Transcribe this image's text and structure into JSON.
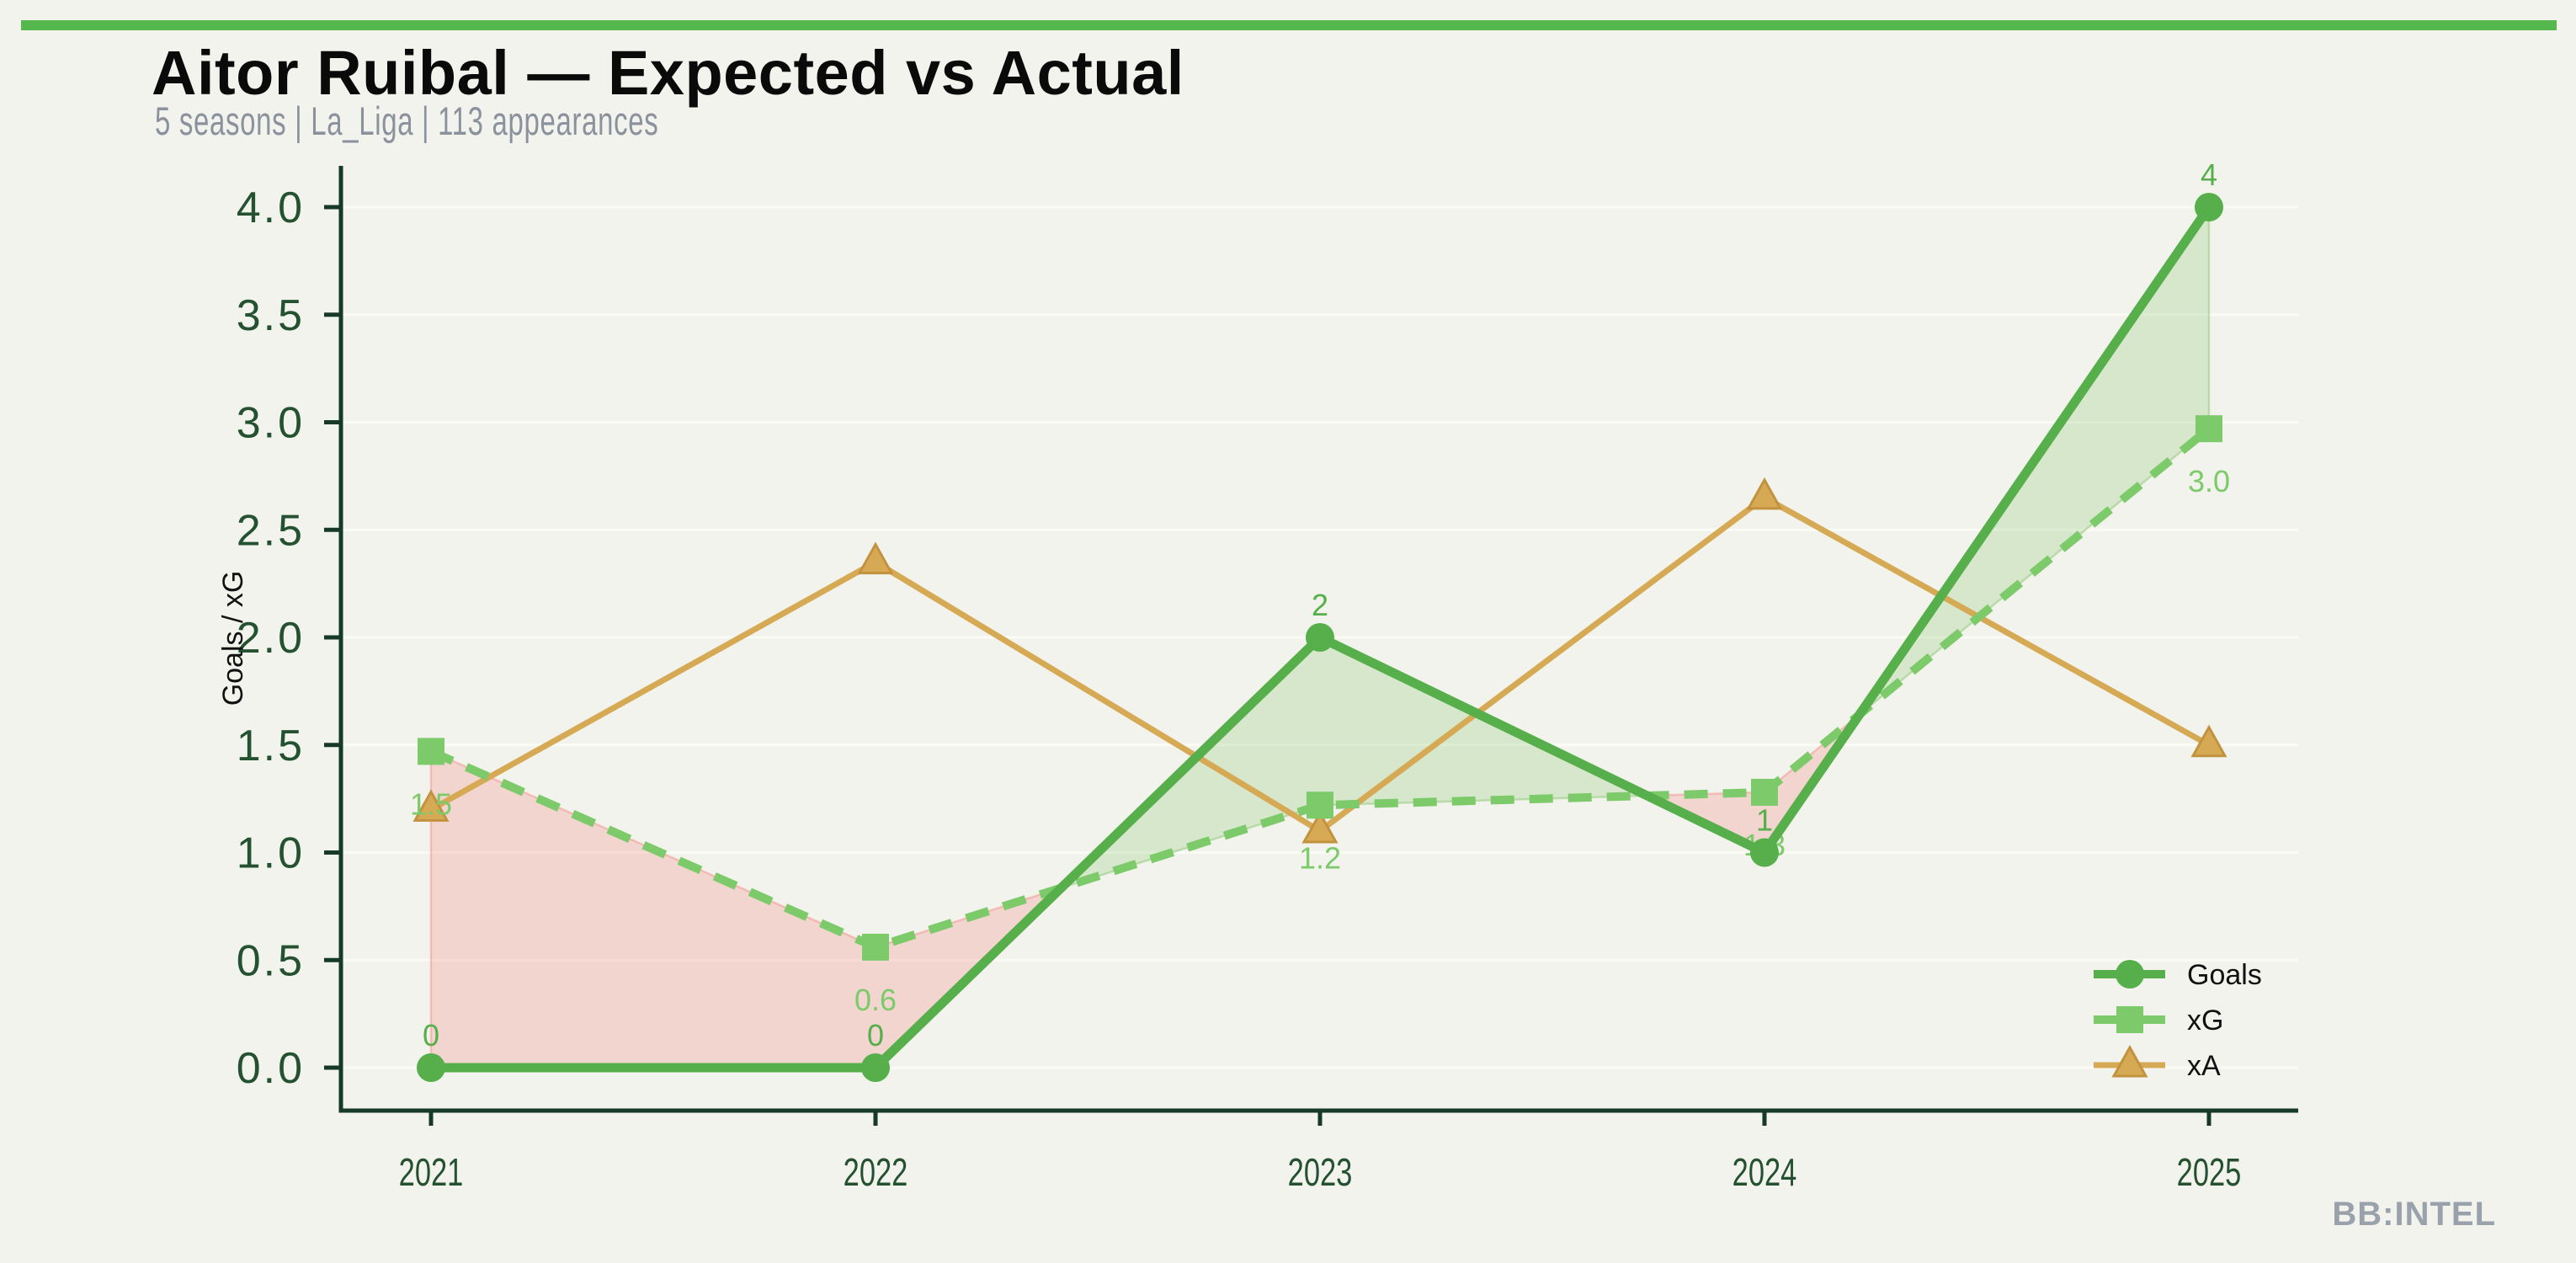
{
  "header": {
    "title": "Aitor Ruibal — Expected vs Actual",
    "subtitle": "5 seasons | La_Liga | 113 appearances"
  },
  "footer": {
    "watermark": "BB:INTEL"
  },
  "colors": {
    "background": "#f2f3ec",
    "accent_bar": "#55b84d",
    "axis": "#16392a",
    "tick_label": "#24512f",
    "axis_title": "#111111",
    "title_text": "#0a0a0a",
    "subtitle_text": "#8b919d",
    "watermark_text": "#99a1ab",
    "legend_text": "#111111",
    "grid": "#fafbf4",
    "goals": "#56af4a",
    "xg": "#7cca6a",
    "xa": "#d6aa55",
    "xa_edge": "#c3923f",
    "fill_goals_above": "rgba(134,197,108,0.25)",
    "fill_goals_above_edge": "rgba(134,197,108,0.45)",
    "fill_xg_above": "rgba(244,138,132,0.28)",
    "fill_xg_above_edge": "rgba(244,138,132,0.45)"
  },
  "chart_data": {
    "type": "line",
    "title": "Aitor Ruibal — Expected vs Actual",
    "subtitle": "5 seasons | La_Liga | 113 appearances",
    "x_categories": [
      "2021",
      "2022",
      "2023",
      "2024",
      "2025"
    ],
    "series": [
      {
        "name": "Goals",
        "marker": "circle",
        "line_style": "solid",
        "color_key": "goals",
        "values": [
          0,
          0,
          2,
          1,
          4
        ],
        "point_labels": [
          "0",
          "0",
          "2",
          "1",
          "4"
        ],
        "label_side": "above"
      },
      {
        "name": "xG",
        "marker": "square",
        "line_style": "dashed",
        "color_key": "xg",
        "values": [
          1.47,
          0.56,
          1.22,
          1.28,
          2.97
        ],
        "point_labels": [
          "1.5",
          "0.6",
          "1.2",
          "1.3",
          "3.0"
        ],
        "label_side": "below"
      },
      {
        "name": "xA",
        "marker": "triangle",
        "line_style": "solid",
        "color_key": "xa",
        "values": [
          1.2,
          2.35,
          1.1,
          2.65,
          1.5
        ],
        "point_labels": [
          "",
          "",
          "",
          "",
          ""
        ],
        "label_side": "none"
      }
    ],
    "ylabel": "Goals / xG",
    "ylim": [
      0,
      4.2
    ],
    "yticks": [
      0,
      0.5,
      1,
      1.5,
      2,
      2.5,
      3,
      3.5,
      4
    ],
    "ytick_labels": [
      "0.0",
      "0.5",
      "1.0",
      "1.5",
      "2.0",
      "2.5",
      "3.0",
      "3.5",
      "4.0"
    ],
    "grid": true,
    "legend": {
      "position": "lower right",
      "entries": [
        "Goals",
        "xG",
        "xA"
      ]
    },
    "fill_between": "shaded green where Goals > xG, shaded red where xG > Goals"
  }
}
